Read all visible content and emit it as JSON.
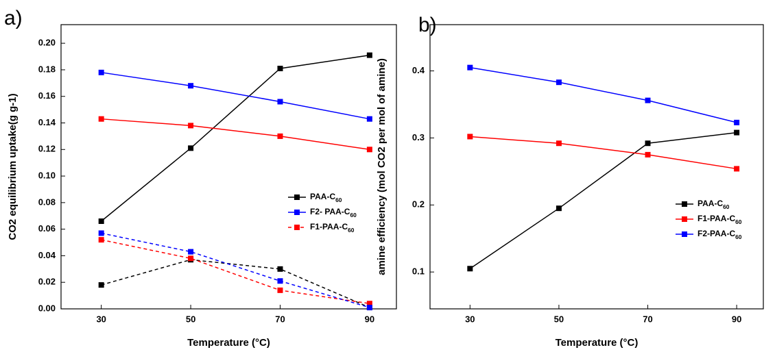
{
  "chart_data": [
    {
      "type": "line",
      "panel_label": "a)",
      "xlabel": "Temperature (°C)",
      "ylabel": "CO2 equilibrium uptake(g g-1)",
      "x": [
        30,
        50,
        70,
        90
      ],
      "xlim": [
        21,
        96
      ],
      "xticks": [
        30,
        50,
        70,
        90
      ],
      "ylim": [
        0,
        0.214
      ],
      "yticks": [
        {
          "value": 0,
          "label": "0.00"
        },
        {
          "value": 0.02,
          "label": "0.02"
        },
        {
          "value": 0.04,
          "label": "0.04"
        },
        {
          "value": 0.06,
          "label": "0.06"
        },
        {
          "value": 0.08,
          "label": "0.08"
        },
        {
          "value": 0.1,
          "label": "0.10"
        },
        {
          "value": 0.12,
          "label": "0.12"
        },
        {
          "value": 0.14,
          "label": "0.14"
        },
        {
          "value": 0.16,
          "label": "0.16"
        },
        {
          "value": 0.18,
          "label": "0.18"
        },
        {
          "value": 0.2,
          "label": "0.20"
        }
      ],
      "legend": "right",
      "series": [
        {
          "name": "PAA-C60",
          "color": "#000000",
          "dashed": false,
          "values": [
            0.066,
            0.121,
            0.181,
            0.191
          ]
        },
        {
          "color": "#ff0000",
          "dashed": false,
          "values": [
            0.143,
            0.138,
            0.13,
            0.12
          ]
        },
        {
          "name": "F2- PAA-C60",
          "color": "#0000ff",
          "dashed": false,
          "values": [
            0.178,
            0.168,
            0.156,
            0.143
          ]
        },
        {
          "color": "#000000",
          "dashed": true,
          "values": [
            0.018,
            0.037,
            0.03,
            0.001
          ]
        },
        {
          "name": "F1-PAA-C60",
          "color": "#ff0000",
          "dashed": true,
          "values": [
            0.052,
            0.038,
            0.014,
            0.004
          ]
        },
        {
          "color": "#0000ff",
          "dashed": true,
          "values": [
            0.057,
            0.043,
            0.021,
            0.001
          ]
        }
      ]
    },
    {
      "type": "line",
      "panel_label": "b)",
      "xlabel": "Temperature (°C)",
      "ylabel": "amine efficiency (mol CO2 per mol of amine)",
      "x": [
        30,
        50,
        70,
        90
      ],
      "xlim": [
        21,
        96
      ],
      "xticks": [
        30,
        50,
        70,
        90
      ],
      "ylim": [
        0.045,
        0.469
      ],
      "yticks": [
        0.1,
        0.2,
        0.3,
        0.4
      ],
      "legend": "right",
      "series": [
        {
          "name": "PAA-C60",
          "color": "#000000",
          "dashed": false,
          "values": [
            0.105,
            0.195,
            0.292,
            0.308
          ]
        },
        {
          "name": "F1-PAA-C60",
          "color": "#ff0000",
          "dashed": false,
          "values": [
            0.302,
            0.292,
            0.275,
            0.254
          ]
        },
        {
          "name": "F2-PAA-C60",
          "color": "#0000ff",
          "dashed": false,
          "values": [
            0.405,
            0.383,
            0.356,
            0.323
          ]
        }
      ]
    }
  ]
}
